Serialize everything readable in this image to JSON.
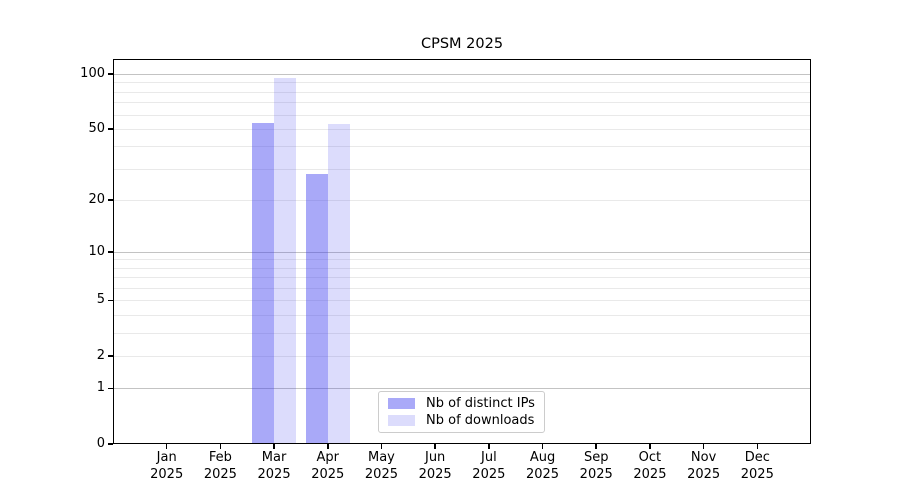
{
  "title": "CPSM 2025",
  "chart_data": {
    "type": "bar",
    "title": "CPSM 2025",
    "xlabel": "",
    "ylabel": "",
    "categories": [
      "Jan",
      "Feb",
      "Mar",
      "Apr",
      "May",
      "Jun",
      "Jul",
      "Aug",
      "Sep",
      "Oct",
      "Nov",
      "Dec"
    ],
    "year": "2025",
    "series": [
      {
        "name": "Nb of distinct IPs",
        "color": "#3c3cf0",
        "alpha": 0.44,
        "values": [
          0,
          0,
          54,
          28,
          0,
          0,
          0,
          0,
          0,
          0,
          0,
          0
        ]
      },
      {
        "name": "Nb of downloads",
        "color": "#3c3cf0",
        "alpha": 0.18,
        "values": [
          0,
          0,
          95,
          53,
          0,
          0,
          0,
          0,
          0,
          0,
          0,
          0
        ]
      }
    ],
    "yscale": "log1p",
    "ylim": [
      0,
      121
    ],
    "yticks": [
      0,
      1,
      2,
      5,
      10,
      20,
      50,
      100
    ],
    "major_gridlines": [
      1,
      10,
      100
    ],
    "minor_gridlines": [
      2,
      3,
      4,
      5,
      6,
      7,
      8,
      9,
      20,
      30,
      40,
      50,
      60,
      70,
      80,
      90
    ],
    "grid_major_color": "#c3c3c3",
    "grid_minor_color": "#e9e9e9",
    "legend_position": "lower center",
    "grid": "on"
  }
}
